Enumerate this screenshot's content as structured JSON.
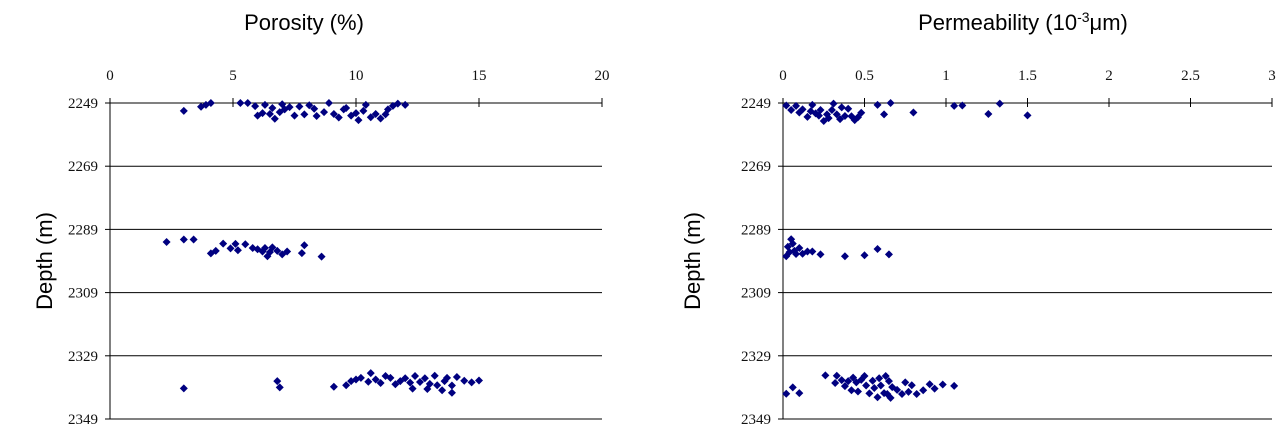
{
  "chart_data": [
    {
      "type": "scatter",
      "title": "Porosity (%)",
      "ylabel": "Depth (m)",
      "xlabel": "",
      "x_axis_position": "top",
      "xlim": [
        0,
        20
      ],
      "xticks": [
        "0",
        "5",
        "10",
        "15",
        "20"
      ],
      "ylim": [
        2249,
        2349
      ],
      "y_inverted": true,
      "yticks": [
        "2249",
        "2269",
        "2289",
        "2309",
        "2329",
        "2349"
      ],
      "grid": "horizontal",
      "marker": "diamond",
      "color": "#000080",
      "points": [
        [
          3.0,
          2251.5
        ],
        [
          3.7,
          2250.2
        ],
        [
          3.9,
          2249.6
        ],
        [
          4.1,
          2249.0
        ],
        [
          5.3,
          2249.0
        ],
        [
          5.6,
          2249.0
        ],
        [
          5.9,
          2250.0
        ],
        [
          6.0,
          2253.0
        ],
        [
          6.2,
          2252.2
        ],
        [
          6.3,
          2249.6
        ],
        [
          6.5,
          2252.5
        ],
        [
          6.6,
          2250.6
        ],
        [
          6.7,
          2254.0
        ],
        [
          6.9,
          2251.9
        ],
        [
          7.0,
          2249.4
        ],
        [
          7.1,
          2251.0
        ],
        [
          7.3,
          2250.3
        ],
        [
          7.5,
          2253.0
        ],
        [
          7.7,
          2250.1
        ],
        [
          7.9,
          2252.6
        ],
        [
          8.1,
          2249.7
        ],
        [
          8.3,
          2250.8
        ],
        [
          8.4,
          2253.1
        ],
        [
          8.7,
          2251.9
        ],
        [
          8.9,
          2249.0
        ],
        [
          9.1,
          2252.5
        ],
        [
          9.3,
          2253.6
        ],
        [
          9.5,
          2251.0
        ],
        [
          9.6,
          2250.6
        ],
        [
          9.8,
          2253.0
        ],
        [
          10.0,
          2252.2
        ],
        [
          10.1,
          2254.4
        ],
        [
          10.3,
          2251.5
        ],
        [
          10.4,
          2249.6
        ],
        [
          10.6,
          2253.5
        ],
        [
          10.8,
          2252.5
        ],
        [
          11.0,
          2253.9
        ],
        [
          11.2,
          2252.6
        ],
        [
          11.3,
          2251.0
        ],
        [
          11.5,
          2249.9
        ],
        [
          11.7,
          2249.2
        ],
        [
          12.0,
          2249.6
        ],
        [
          2.3,
          2293.0
        ],
        [
          3.0,
          2292.2
        ],
        [
          3.4,
          2292.2
        ],
        [
          4.1,
          2296.6
        ],
        [
          4.3,
          2295.8
        ],
        [
          4.6,
          2293.5
        ],
        [
          4.9,
          2295.0
        ],
        [
          5.1,
          2293.6
        ],
        [
          5.2,
          2295.6
        ],
        [
          5.5,
          2293.7
        ],
        [
          5.8,
          2294.9
        ],
        [
          6.0,
          2295.3
        ],
        [
          6.2,
          2296.0
        ],
        [
          6.3,
          2294.9
        ],
        [
          6.4,
          2297.5
        ],
        [
          6.5,
          2296.2
        ],
        [
          6.6,
          2294.7
        ],
        [
          6.8,
          2295.8
        ],
        [
          7.0,
          2296.9
        ],
        [
          7.2,
          2296.0
        ],
        [
          7.8,
          2296.5
        ],
        [
          7.9,
          2294.0
        ],
        [
          8.6,
          2297.6
        ],
        [
          3.0,
          2339.3
        ],
        [
          6.8,
          2337.0
        ],
        [
          6.9,
          2339.0
        ],
        [
          9.1,
          2338.8
        ],
        [
          9.6,
          2338.3
        ],
        [
          9.8,
          2337.0
        ],
        [
          10.0,
          2336.5
        ],
        [
          10.2,
          2336.0
        ],
        [
          10.5,
          2337.2
        ],
        [
          10.6,
          2334.5
        ],
        [
          10.8,
          2336.5
        ],
        [
          11.0,
          2337.6
        ],
        [
          11.2,
          2335.4
        ],
        [
          11.4,
          2336.0
        ],
        [
          11.6,
          2338.0
        ],
        [
          11.8,
          2337.0
        ],
        [
          12.0,
          2336.1
        ],
        [
          12.2,
          2337.5
        ],
        [
          12.3,
          2339.4
        ],
        [
          12.4,
          2335.4
        ],
        [
          12.6,
          2337.3
        ],
        [
          12.8,
          2336.1
        ],
        [
          12.9,
          2339.5
        ],
        [
          13.0,
          2337.9
        ],
        [
          13.2,
          2335.3
        ],
        [
          13.3,
          2338.3
        ],
        [
          13.5,
          2339.9
        ],
        [
          13.6,
          2337.0
        ],
        [
          13.7,
          2336.0
        ],
        [
          13.9,
          2338.4
        ],
        [
          13.9,
          2340.7
        ],
        [
          14.1,
          2335.7
        ],
        [
          14.4,
          2336.9
        ],
        [
          14.7,
          2337.4
        ],
        [
          15.0,
          2336.8
        ]
      ]
    },
    {
      "type": "scatter",
      "title_main": "Permeability (10",
      "title_sup": "-3",
      "title_end": "μm)",
      "ylabel": "Depth (m)",
      "xlabel": "",
      "x_axis_position": "top",
      "xlim": [
        0,
        3
      ],
      "xticks": [
        "0",
        "0.5",
        "1",
        "1.5",
        "2",
        "2.5",
        "3"
      ],
      "ylim": [
        2249,
        2349
      ],
      "y_inverted": true,
      "yticks": [
        "2249",
        "2269",
        "2289",
        "2309",
        "2329",
        "2349"
      ],
      "grid": "horizontal",
      "marker": "diamond",
      "color": "#000080",
      "points": [
        [
          0.02,
          2249.8
        ],
        [
          0.05,
          2251.2
        ],
        [
          0.08,
          2249.9
        ],
        [
          0.1,
          2252.0
        ],
        [
          0.12,
          2251.0
        ],
        [
          0.15,
          2253.4
        ],
        [
          0.17,
          2251.6
        ],
        [
          0.18,
          2249.6
        ],
        [
          0.2,
          2252.3
        ],
        [
          0.22,
          2253.0
        ],
        [
          0.23,
          2251.2
        ],
        [
          0.25,
          2254.7
        ],
        [
          0.27,
          2252.6
        ],
        [
          0.28,
          2253.8
        ],
        [
          0.3,
          2251.2
        ],
        [
          0.31,
          2249.2
        ],
        [
          0.33,
          2252.6
        ],
        [
          0.35,
          2254.1
        ],
        [
          0.36,
          2250.4
        ],
        [
          0.38,
          2253.1
        ],
        [
          0.4,
          2250.8
        ],
        [
          0.42,
          2253.2
        ],
        [
          0.44,
          2254.4
        ],
        [
          0.46,
          2253.5
        ],
        [
          0.48,
          2252.1
        ],
        [
          0.58,
          2249.6
        ],
        [
          0.62,
          2252.6
        ],
        [
          0.66,
          2249.0
        ],
        [
          0.8,
          2252.0
        ],
        [
          1.05,
          2249.9
        ],
        [
          1.1,
          2249.8
        ],
        [
          1.26,
          2252.5
        ],
        [
          1.33,
          2249.2
        ],
        [
          1.5,
          2252.9
        ],
        [
          0.02,
          2297.5
        ],
        [
          0.03,
          2294.5
        ],
        [
          0.04,
          2296.2
        ],
        [
          0.05,
          2292.1
        ],
        [
          0.06,
          2293.5
        ],
        [
          0.07,
          2295.8
        ],
        [
          0.08,
          2296.8
        ],
        [
          0.1,
          2294.9
        ],
        [
          0.12,
          2296.7
        ],
        [
          0.15,
          2296.0
        ],
        [
          0.18,
          2296.0
        ],
        [
          0.23,
          2296.9
        ],
        [
          0.38,
          2297.5
        ],
        [
          0.5,
          2297.2
        ],
        [
          0.58,
          2295.2
        ],
        [
          0.65,
          2296.9
        ],
        [
          0.02,
          2341.0
        ],
        [
          0.06,
          2339.0
        ],
        [
          0.1,
          2340.8
        ],
        [
          0.26,
          2335.2
        ],
        [
          0.32,
          2337.6
        ],
        [
          0.33,
          2335.3
        ],
        [
          0.36,
          2336.7
        ],
        [
          0.38,
          2338.6
        ],
        [
          0.4,
          2337.0
        ],
        [
          0.42,
          2339.9
        ],
        [
          0.43,
          2335.9
        ],
        [
          0.45,
          2337.4
        ],
        [
          0.46,
          2340.3
        ],
        [
          0.48,
          2336.6
        ],
        [
          0.5,
          2335.4
        ],
        [
          0.51,
          2338.4
        ],
        [
          0.53,
          2340.9
        ],
        [
          0.55,
          2336.9
        ],
        [
          0.56,
          2339.2
        ],
        [
          0.58,
          2342.1
        ],
        [
          0.59,
          2336.1
        ],
        [
          0.6,
          2338.4
        ],
        [
          0.62,
          2340.8
        ],
        [
          0.63,
          2335.4
        ],
        [
          0.64,
          2341.1
        ],
        [
          0.65,
          2337.0
        ],
        [
          0.66,
          2342.3
        ],
        [
          0.67,
          2338.9
        ],
        [
          0.7,
          2339.8
        ],
        [
          0.73,
          2341.1
        ],
        [
          0.75,
          2337.4
        ],
        [
          0.77,
          2340.4
        ],
        [
          0.79,
          2338.3
        ],
        [
          0.82,
          2341.1
        ],
        [
          0.86,
          2339.9
        ],
        [
          0.9,
          2338.0
        ],
        [
          0.93,
          2339.4
        ],
        [
          0.98,
          2338.1
        ],
        [
          1.05,
          2338.5
        ]
      ]
    }
  ]
}
